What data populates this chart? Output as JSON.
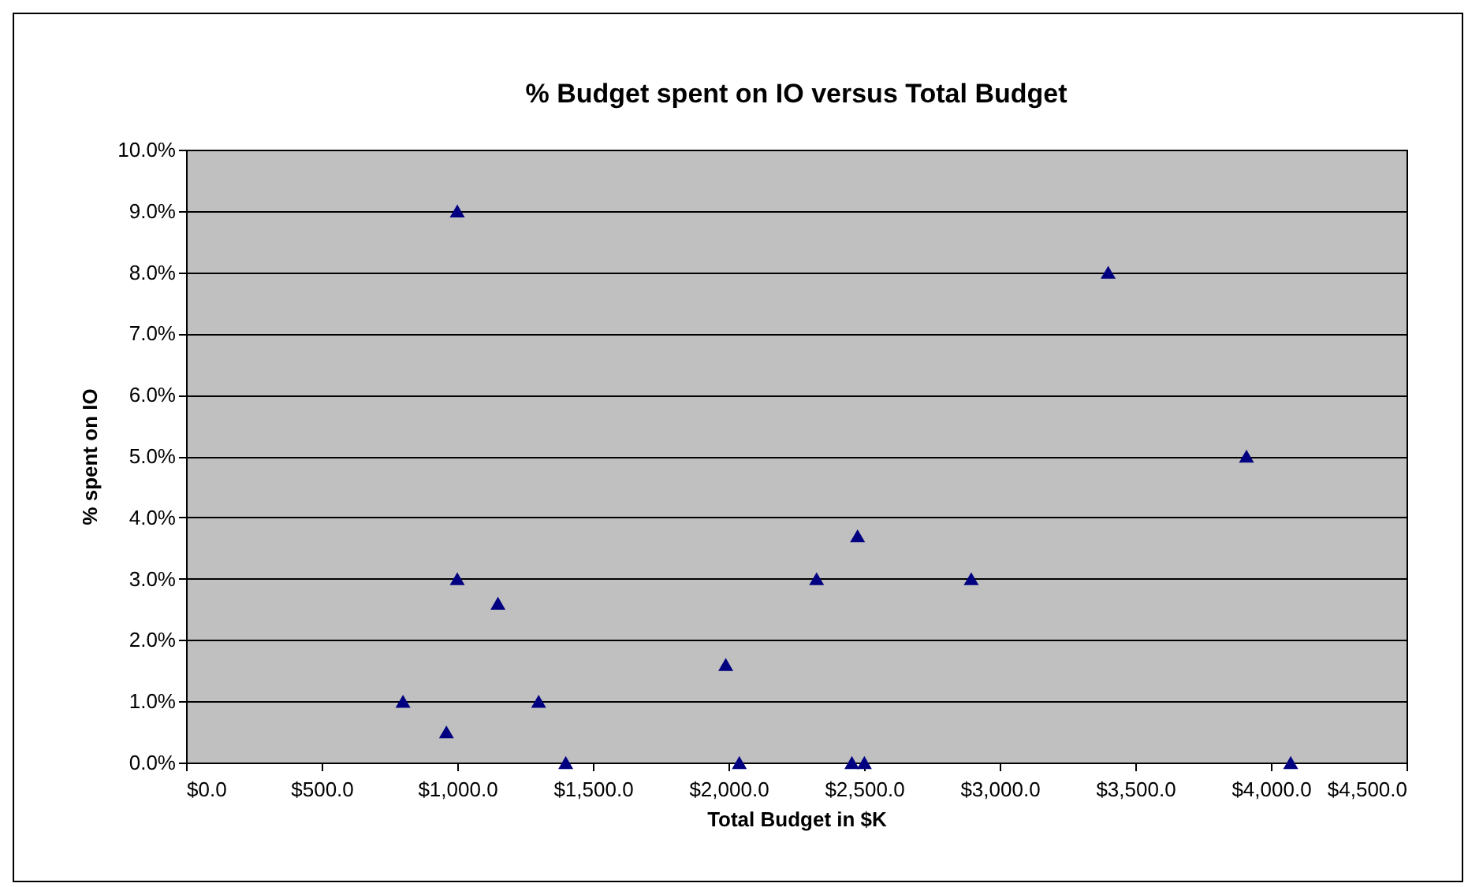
{
  "chart_data": {
    "type": "scatter",
    "title": "% Budget spent on IO versus Total Budget",
    "xlabel": "Total Budget in $K",
    "ylabel": "% spent on IO",
    "x": [
      800,
      960,
      1000,
      1000,
      1150,
      1300,
      1400,
      1990,
      2040,
      2325,
      2455,
      2476,
      2501,
      2895,
      3400,
      3910,
      4073
    ],
    "series": [
      {
        "color": "#000080",
        "values": [
          1.0,
          0.5,
          9.0,
          3.0,
          2.6,
          1.0,
          0,
          1.6,
          0,
          3.0,
          0,
          3.7,
          0,
          3.0,
          8.0,
          5.0,
          0
        ]
      }
    ],
    "xlim": [
      0,
      4500
    ],
    "xticks": [
      {
        "value": 0,
        "label": "$0.0"
      },
      {
        "value": 500,
        "label": "$500.0"
      },
      {
        "value": 1000,
        "label": "$1,000.0"
      },
      {
        "value": 1500,
        "label": "$1,500.0"
      },
      {
        "value": 2000,
        "label": "$2,000.0"
      },
      {
        "value": 2500,
        "label": "$2,500.0"
      },
      {
        "value": 3000,
        "label": "$3,000.0"
      },
      {
        "value": 3500,
        "label": "$3,500.0"
      },
      {
        "value": 4000,
        "label": "$4,000.0"
      },
      {
        "value": 4500,
        "label": "$4,500.0"
      }
    ],
    "ylim": [
      0,
      10
    ],
    "yticks": [
      {
        "value": 0,
        "label": "0.0%"
      },
      {
        "value": 1,
        "label": "1.0%"
      },
      {
        "value": 2,
        "label": "2.0%"
      },
      {
        "value": 3,
        "label": "3.0%"
      },
      {
        "value": 4,
        "label": "4.0%"
      },
      {
        "value": 5,
        "label": "5.0%"
      },
      {
        "value": 6,
        "label": "6.0%"
      },
      {
        "value": 7,
        "label": "7.0%"
      },
      {
        "value": 8,
        "label": "8.0%"
      },
      {
        "value": 9,
        "label": "9.0%"
      },
      {
        "value": 10,
        "label": "10.0%"
      }
    ],
    "grid": "y",
    "marker": "triangle",
    "legend": false
  }
}
